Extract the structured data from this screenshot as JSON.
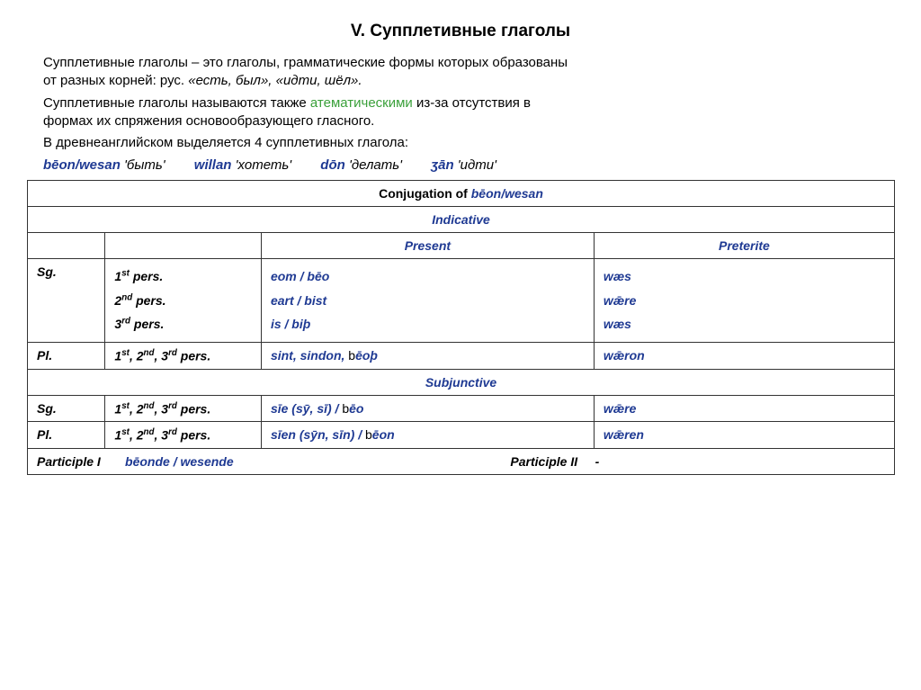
{
  "title": "V. Супплетивные глаголы",
  "para1_a": "Супплетивные глаголы – это глаголы, грамматические формы которых образованы",
  "para1_b": "от разных корней: рус. ",
  "para1_ex": "«есть, был», «идти, шёл».",
  "para2_a": "Супплетивные глаголы называются также ",
  "para2_hl": "атематическими",
  "para2_b": " из-за отсутствия  в",
  "para2_c": "формах их спряжения основообразующего гласного.",
  "para3": "В древнеанглийском выделяется 4 супплетивных глагола:",
  "verbs": [
    {
      "w": "bēon/wesan",
      "g": "'быть'"
    },
    {
      "w": "willan",
      "g": "'хотеть'"
    },
    {
      "w": "dōn",
      "g": "'делать'"
    },
    {
      "w": "ʒān",
      "g": "'идти'"
    }
  ],
  "table": {
    "caption_a": "Conjugation of ",
    "caption_b": "bēon/wesan",
    "indicative": "Indicative",
    "present": "Present",
    "preterite": "Preterite",
    "sg": "Sg.",
    "pl": "Pl.",
    "p1": "1",
    "p1s": "st",
    "p1t": " pers.",
    "p2": "2",
    "p2s": "nd",
    "p2t": " pers.",
    "p3": "3",
    "p3s": "rd",
    "p3t": " pers.",
    "p123_html": "1<sup>st</sup>, 2<sup>nd</sup>, 3<sup>rd</sup> pers.",
    "sg_present_1": "eom / bēo",
    "sg_present_2": "eart / bist",
    "sg_present_3": "is / biþ",
    "sg_pret_1": "wæs",
    "sg_pret_2": "wǣre",
    "sg_pret_3": "wæs",
    "pl_present_a": "sint, sindon, ",
    "pl_present_b_blk": "b",
    "pl_present_c": "ēoþ",
    "pl_pret": "wǣron",
    "subjunctive": "Subjunctive",
    "subj_sg_pres_a": "sīe (sȳ, sī) / ",
    "subj_sg_pres_b_blk": "b",
    "subj_sg_pres_c": "ēo",
    "subj_sg_pret": "wǣre",
    "subj_pl_pres_a": "sīen (sȳn, sīn) / ",
    "subj_pl_pres_b_blk": "b",
    "subj_pl_pres_c": "ēon",
    "subj_pl_pret": "wǣren",
    "part1_lbl": "Participle I",
    "part1_val": "bēonde / wesende",
    "part2_lbl": "Participle II",
    "part2_val": "-"
  }
}
